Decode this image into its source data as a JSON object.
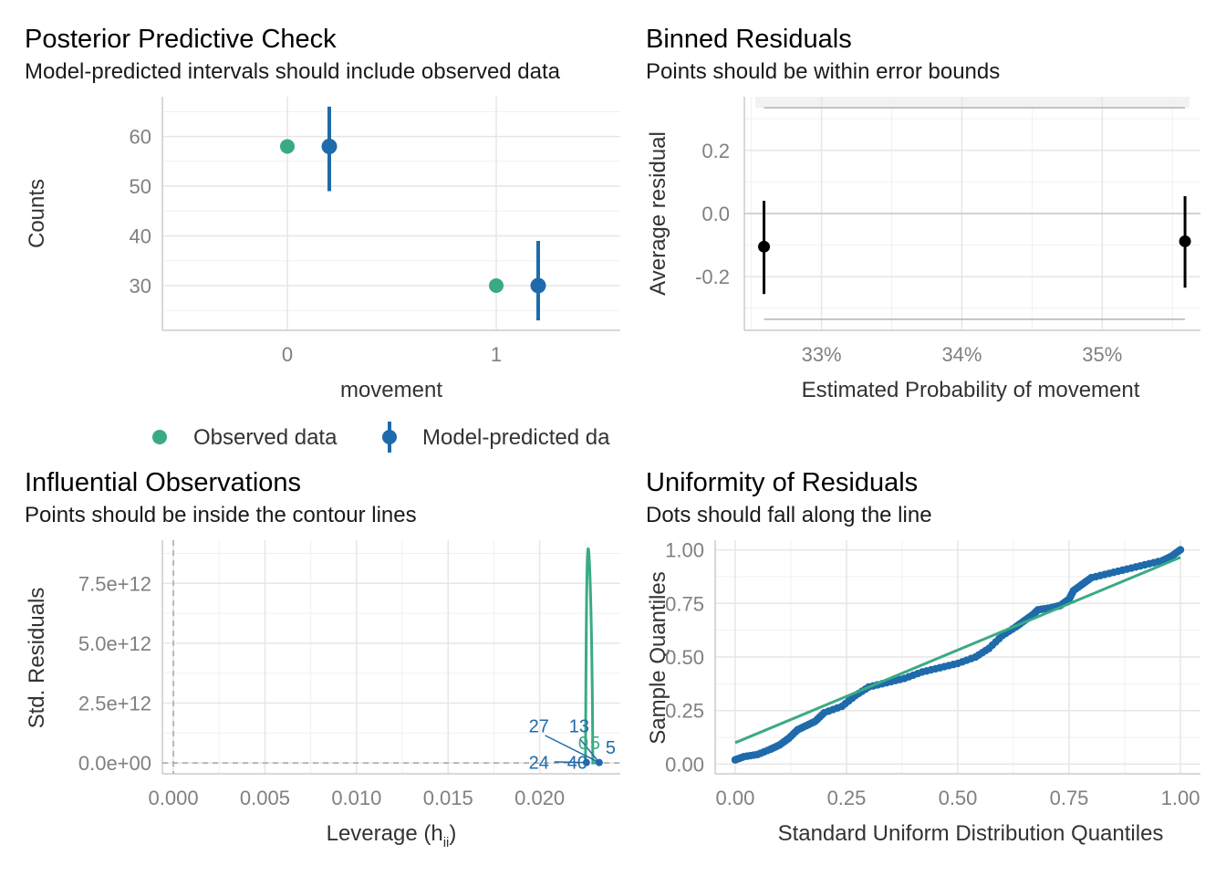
{
  "colors": {
    "observed": "#3aaa85",
    "predicted": "#1f6aaa",
    "black": "#000000",
    "grid": "#e6e6e6",
    "bound": "#b3b3b3",
    "contour": "#3aaa85"
  },
  "chart_data": [
    {
      "id": "ppc",
      "type": "scatter",
      "title": "Posterior Predictive Check",
      "subtitle": "Model-predicted intervals should include observed data",
      "xlabel": "movement",
      "ylabel": "Counts",
      "categories": [
        "0",
        "1"
      ],
      "xticks": [
        "0",
        "1"
      ],
      "yticks": [
        30,
        40,
        50,
        60
      ],
      "ylim": [
        21,
        68
      ],
      "series": [
        {
          "name": "Observed data",
          "values": [
            58,
            30
          ]
        },
        {
          "name": "Model-predicted data",
          "values": [
            58,
            30
          ],
          "lower": [
            49,
            23
          ],
          "upper": [
            66,
            39
          ]
        }
      ],
      "legend_position": "bottom",
      "legend": [
        "Observed data",
        "Model-predicted da"
      ]
    },
    {
      "id": "binned",
      "type": "scatter",
      "title": "Binned Residuals",
      "subtitle": "Points should be within error bounds",
      "xlabel": "Estimated Probability of movement",
      "ylabel": "Average residual",
      "xticks": [
        "33%",
        "34%",
        "35%"
      ],
      "xtick_values": [
        33,
        34,
        35
      ],
      "xlim": [
        32.45,
        35.7
      ],
      "yticks": [
        "-0.2",
        "0.0",
        "0.2"
      ],
      "ytick_values": [
        -0.2,
        0.0,
        0.2
      ],
      "ylim": [
        -0.37,
        0.37
      ],
      "points": [
        {
          "x": 32.59,
          "y": -0.105,
          "lower": -0.255,
          "upper": 0.04
        },
        {
          "x": 35.59,
          "y": -0.088,
          "lower": -0.235,
          "upper": 0.055
        }
      ],
      "error_bounds": [
        0.335,
        -0.335
      ],
      "bounds_xrange": [
        32.59,
        35.59
      ],
      "shaded_region": [
        0.335,
        0.37
      ]
    },
    {
      "id": "influential",
      "type": "scatter",
      "title": "Influential Observations",
      "subtitle": "Points should be inside the contour lines",
      "xlabel": "Leverage (h",
      "xlabel_sub": "ii",
      "xlabel_end": ")",
      "ylabel": "Std. Residuals",
      "xticks": [
        "0.000",
        "0.005",
        "0.010",
        "0.015",
        "0.020"
      ],
      "xtick_values": [
        0.0,
        0.005,
        0.01,
        0.015,
        0.02
      ],
      "xlim": [
        -0.0006,
        0.0244
      ],
      "yticks": [
        "0.0e+00",
        "2.5e+12",
        "5.0e+12",
        "7.5e+12"
      ],
      "ytick_values": [
        0,
        2.5,
        5.0,
        7.5
      ],
      "ylim": [
        -0.45,
        9.3
      ],
      "contour": {
        "x_left": 0.0225,
        "x_peak": 0.02265,
        "x_right": 0.0229,
        "peak": 8.95,
        "right_x_end": 0.0232
      },
      "points": [
        {
          "x": 0.02255,
          "y": 0.02
        },
        {
          "x": 0.02325,
          "y": 0.02
        }
      ],
      "labels": [
        {
          "text": "27",
          "x": 0.0194,
          "y": 1.55,
          "color": "predicted"
        },
        {
          "text": "13",
          "x": 0.0216,
          "y": 1.55,
          "color": "predicted"
        },
        {
          "text": "0",
          "x": 0.0221,
          "y": 0.85,
          "color": "observed"
        },
        {
          "text": "5",
          "x": 0.02275,
          "y": 0.85,
          "color": "observed"
        },
        {
          "text": "5",
          "x": 0.0236,
          "y": 0.65,
          "color": "predicted"
        },
        {
          "text": "24",
          "x": 0.0194,
          "y": 0.02,
          "color": "predicted"
        },
        {
          "text": "40",
          "x": 0.0215,
          "y": 0.02,
          "color": "predicted"
        }
      ]
    },
    {
      "id": "uniformity",
      "type": "scatter",
      "title": "Uniformity of Residuals",
      "subtitle": "Dots should fall along the line",
      "xlabel": "Standard Uniform Distribution Quantiles",
      "ylabel": "Sample Quantiles",
      "xticks": [
        "0.00",
        "0.25",
        "0.50",
        "0.75",
        "1.00"
      ],
      "xtick_values": [
        0,
        0.25,
        0.5,
        0.75,
        1.0
      ],
      "xlim": [
        -0.045,
        1.045
      ],
      "yticks": [
        "0.00",
        "0.25",
        "0.50",
        "0.75",
        "1.00"
      ],
      "ytick_values": [
        0,
        0.25,
        0.5,
        0.75,
        1.0
      ],
      "ylim": [
        -0.045,
        1.045
      ],
      "reference_line": {
        "x": [
          0,
          1
        ],
        "y": [
          0.1,
          0.965
        ]
      },
      "curve": [
        [
          0.0,
          0.02
        ],
        [
          0.02,
          0.035
        ],
        [
          0.05,
          0.045
        ],
        [
          0.08,
          0.07
        ],
        [
          0.1,
          0.09
        ],
        [
          0.12,
          0.12
        ],
        [
          0.14,
          0.16
        ],
        [
          0.16,
          0.18
        ],
        [
          0.18,
          0.2
        ],
        [
          0.2,
          0.24
        ],
        [
          0.24,
          0.27
        ],
        [
          0.27,
          0.32
        ],
        [
          0.3,
          0.36
        ],
        [
          0.34,
          0.38
        ],
        [
          0.38,
          0.4
        ],
        [
          0.42,
          0.43
        ],
        [
          0.46,
          0.45
        ],
        [
          0.5,
          0.47
        ],
        [
          0.54,
          0.5
        ],
        [
          0.57,
          0.54
        ],
        [
          0.6,
          0.6
        ],
        [
          0.63,
          0.64
        ],
        [
          0.65,
          0.67
        ],
        [
          0.67,
          0.7
        ],
        [
          0.68,
          0.72
        ],
        [
          0.71,
          0.73
        ],
        [
          0.73,
          0.74
        ],
        [
          0.75,
          0.77
        ],
        [
          0.76,
          0.81
        ],
        [
          0.78,
          0.84
        ],
        [
          0.8,
          0.87
        ],
        [
          0.84,
          0.89
        ],
        [
          0.88,
          0.91
        ],
        [
          0.92,
          0.93
        ],
        [
          0.96,
          0.95
        ],
        [
          0.98,
          0.97
        ],
        [
          1.0,
          1.0
        ]
      ]
    }
  ]
}
